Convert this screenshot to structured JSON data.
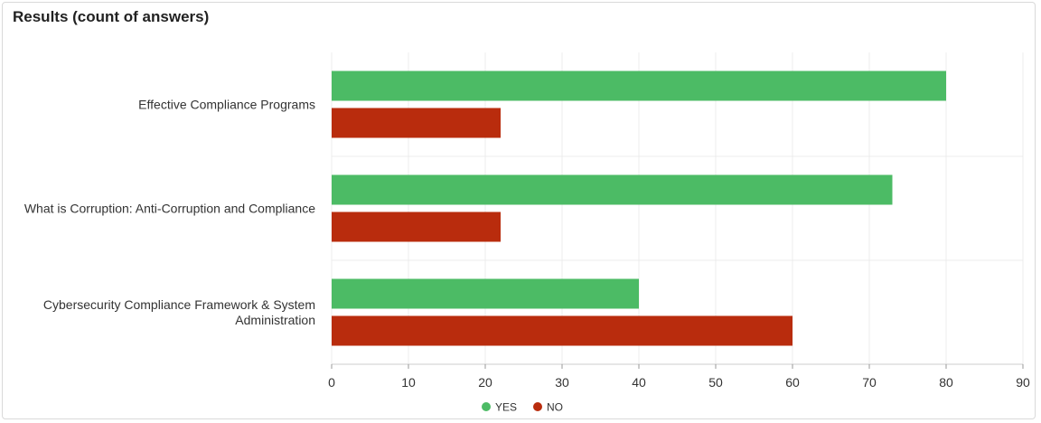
{
  "chart_data": {
    "type": "bar",
    "orientation": "horizontal",
    "title": "Results (count of answers)",
    "categories": [
      [
        "Effective Compliance Programs"
      ],
      [
        "What is Corruption: Anti-Corruption and Compliance"
      ],
      [
        "Cybersecurity Compliance Framework & System",
        "Administration"
      ]
    ],
    "series": [
      {
        "name": "YES",
        "color": "#4cbb65",
        "values": [
          80,
          73,
          40
        ]
      },
      {
        "name": "NO",
        "color": "#b92c0d",
        "values": [
          22,
          22,
          60
        ]
      }
    ],
    "xlim": [
      0,
      90
    ],
    "xticks": [
      0,
      10,
      20,
      30,
      40,
      50,
      60,
      70,
      80,
      90
    ],
    "grid": true,
    "legend_position": "bottom-center"
  }
}
